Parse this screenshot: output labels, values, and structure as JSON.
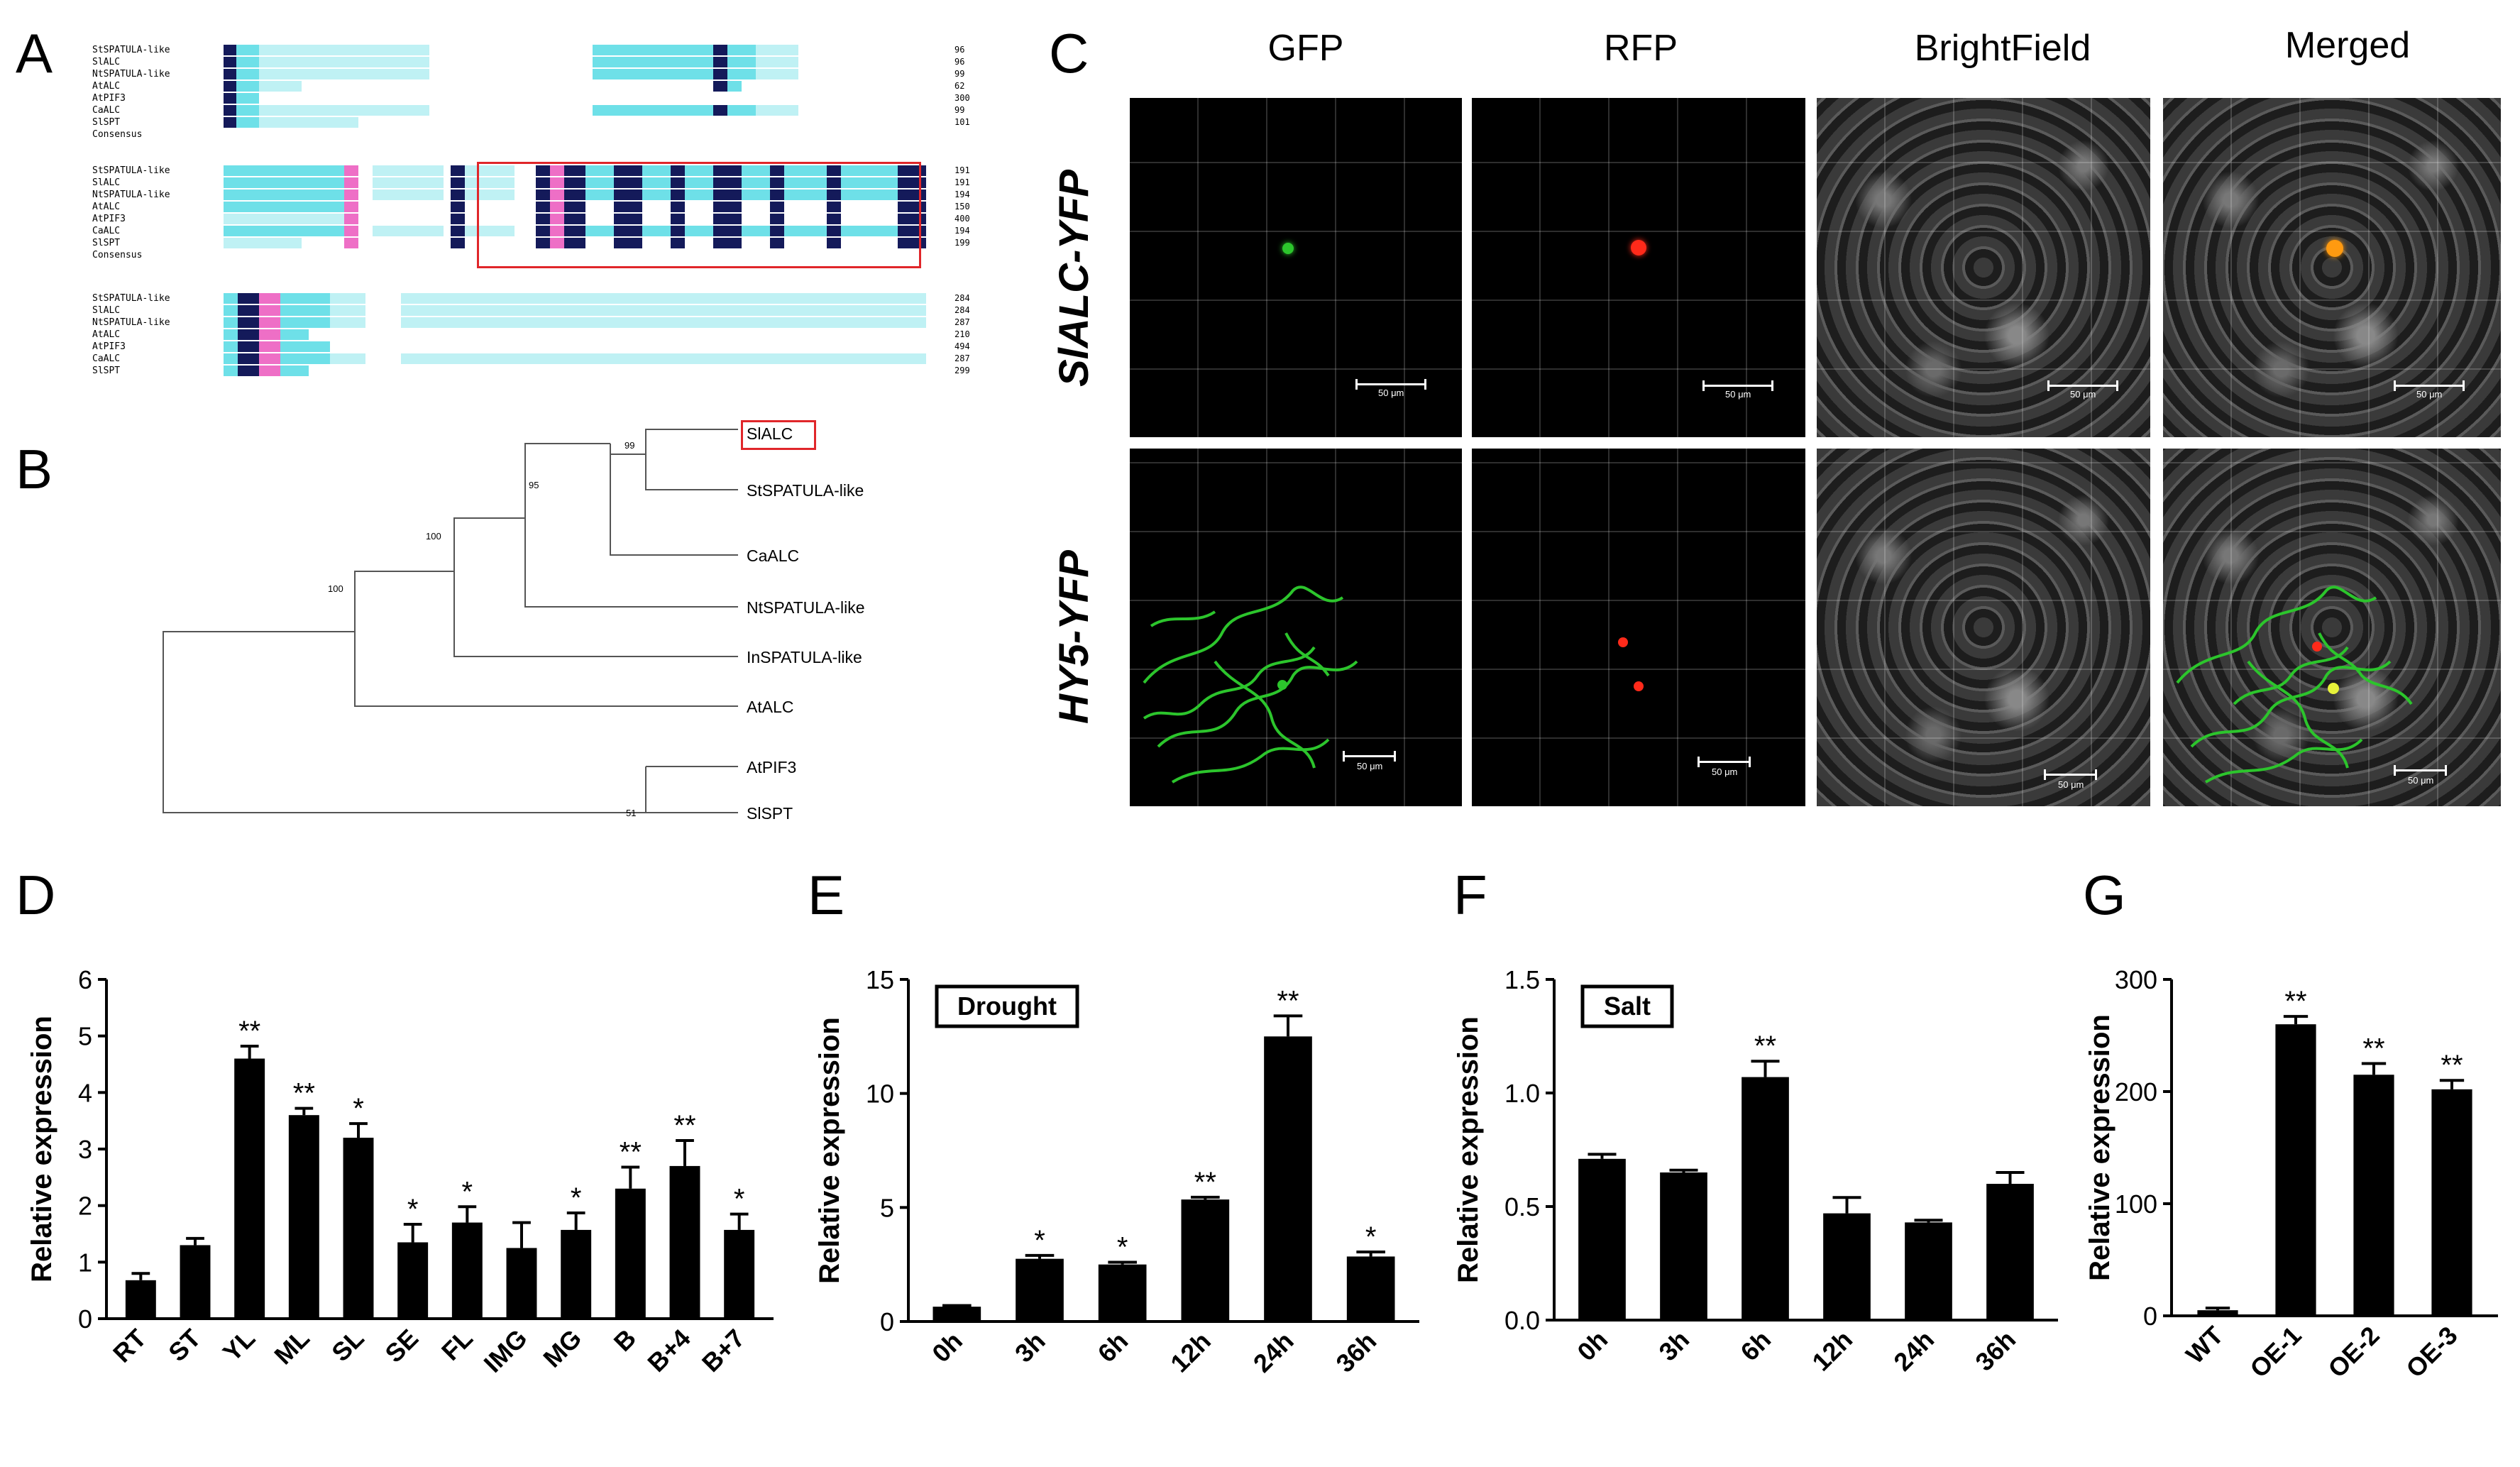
{
  "panel_letters": {
    "a": "A",
    "b": "B",
    "c": "C",
    "d": "D",
    "e": "E",
    "f": "F",
    "g": "G"
  },
  "alignment": {
    "block1": {
      "names": [
        "StSPATULA-like",
        "SlALC",
        "NtSPATULA-like",
        "AtALC",
        "AtPIF3",
        "CaALC",
        "SlSPT",
        "Consensus"
      ],
      "numbers": [
        "96",
        "96",
        "99",
        "62",
        "300",
        "99",
        "101",
        ""
      ]
    },
    "block2": {
      "names": [
        "StSPATULA-like",
        "SlALC",
        "NtSPATULA-like",
        "AtALC",
        "AtPIF3",
        "CaALC",
        "SlSPT",
        "Consensus"
      ],
      "numbers": [
        "191",
        "191",
        "194",
        "150",
        "400",
        "194",
        "199",
        ""
      ]
    },
    "block3": {
      "names": [
        "StSPATULA-like",
        "SlALC",
        "NtSPATULA-like",
        "AtALC",
        "AtPIF3",
        "CaALC",
        "SlSPT"
      ],
      "numbers": [
        "284",
        "284",
        "287",
        "210",
        "494",
        "287",
        "299"
      ]
    }
  },
  "tree": {
    "leaves": [
      "SlALC",
      "StSPATULA-like",
      "CaALC",
      "NtSPATULA-like",
      "InSPATULA-like",
      "AtALC",
      "AtPIF3",
      "SlSPT"
    ],
    "bootstrap": [
      "99",
      "95",
      "100",
      "100",
      "51"
    ]
  },
  "microscopy": {
    "columns": [
      "GFP",
      "RFP",
      "BrightField",
      "Merged"
    ],
    "rows": [
      "SlALC-YFP",
      "HY5-YFP"
    ],
    "scale_label": "50 μm"
  },
  "chart_data": [
    {
      "panel": "D",
      "type": "bar",
      "categories": [
        "RT",
        "ST",
        "YL",
        "ML",
        "SL",
        "SE",
        "FL",
        "IMG",
        "MG",
        "B",
        "B+4",
        "B+7"
      ],
      "values": [
        0.68,
        1.3,
        4.6,
        3.6,
        3.2,
        1.35,
        1.7,
        1.25,
        1.57,
        2.3,
        2.7,
        1.57
      ],
      "errors": [
        0.12,
        0.12,
        0.22,
        0.12,
        0.25,
        0.32,
        0.28,
        0.45,
        0.3,
        0.38,
        0.45,
        0.28
      ],
      "significance": [
        "",
        "",
        "**",
        "**",
        "*",
        "*",
        "*",
        "",
        "*",
        "**",
        "**",
        "*"
      ],
      "title": "",
      "xlabel": "",
      "ylabel": "Relative expression",
      "ylim": [
        0,
        6
      ],
      "yticks": [
        "0",
        "1",
        "2",
        "3",
        "4",
        "5",
        "6"
      ]
    },
    {
      "panel": "E",
      "type": "bar",
      "categories": [
        "0h",
        "3h",
        "6h",
        "12h",
        "24h",
        "36h"
      ],
      "values": [
        0.65,
        2.75,
        2.5,
        5.35,
        12.5,
        2.85
      ],
      "errors": [
        0.05,
        0.15,
        0.1,
        0.1,
        0.9,
        0.2
      ],
      "significance": [
        "",
        "*",
        "*",
        "**",
        "**",
        "*"
      ],
      "legend": "Drought",
      "ylabel": "Relative expression",
      "ylim": [
        0,
        15
      ],
      "yticks": [
        "0",
        "5",
        "10",
        "15"
      ]
    },
    {
      "panel": "F",
      "type": "bar",
      "categories": [
        "0h",
        "3h",
        "6h",
        "12h",
        "24h",
        "36h"
      ],
      "values": [
        0.71,
        0.65,
        1.07,
        0.47,
        0.43,
        0.6
      ],
      "errors": [
        0.02,
        0.01,
        0.07,
        0.07,
        0.01,
        0.05
      ],
      "significance": [
        "",
        "",
        "**",
        "",
        "",
        ""
      ],
      "legend": "Salt",
      "ylabel": "Relative expression",
      "ylim": [
        0,
        1.5
      ],
      "yticks": [
        "0.0",
        "0.5",
        "1.0",
        "1.5"
      ]
    },
    {
      "panel": "G",
      "type": "bar",
      "categories": [
        "WT",
        "OE-1",
        "OE-2",
        "OE-3"
      ],
      "values": [
        5,
        260,
        215,
        202
      ],
      "errors": [
        2,
        7,
        10,
        8
      ],
      "significance": [
        "",
        "**",
        "**",
        "**"
      ],
      "ylabel": "Relative expression",
      "ylim": [
        0,
        300
      ],
      "yticks": [
        "0",
        "100",
        "200",
        "300"
      ]
    }
  ],
  "colors": {
    "bar": "#000000",
    "highlight_box": "#e0262a",
    "gfp": "#2cc52c",
    "rfp": "#ff2a1a",
    "merged": "#ff9a10"
  }
}
